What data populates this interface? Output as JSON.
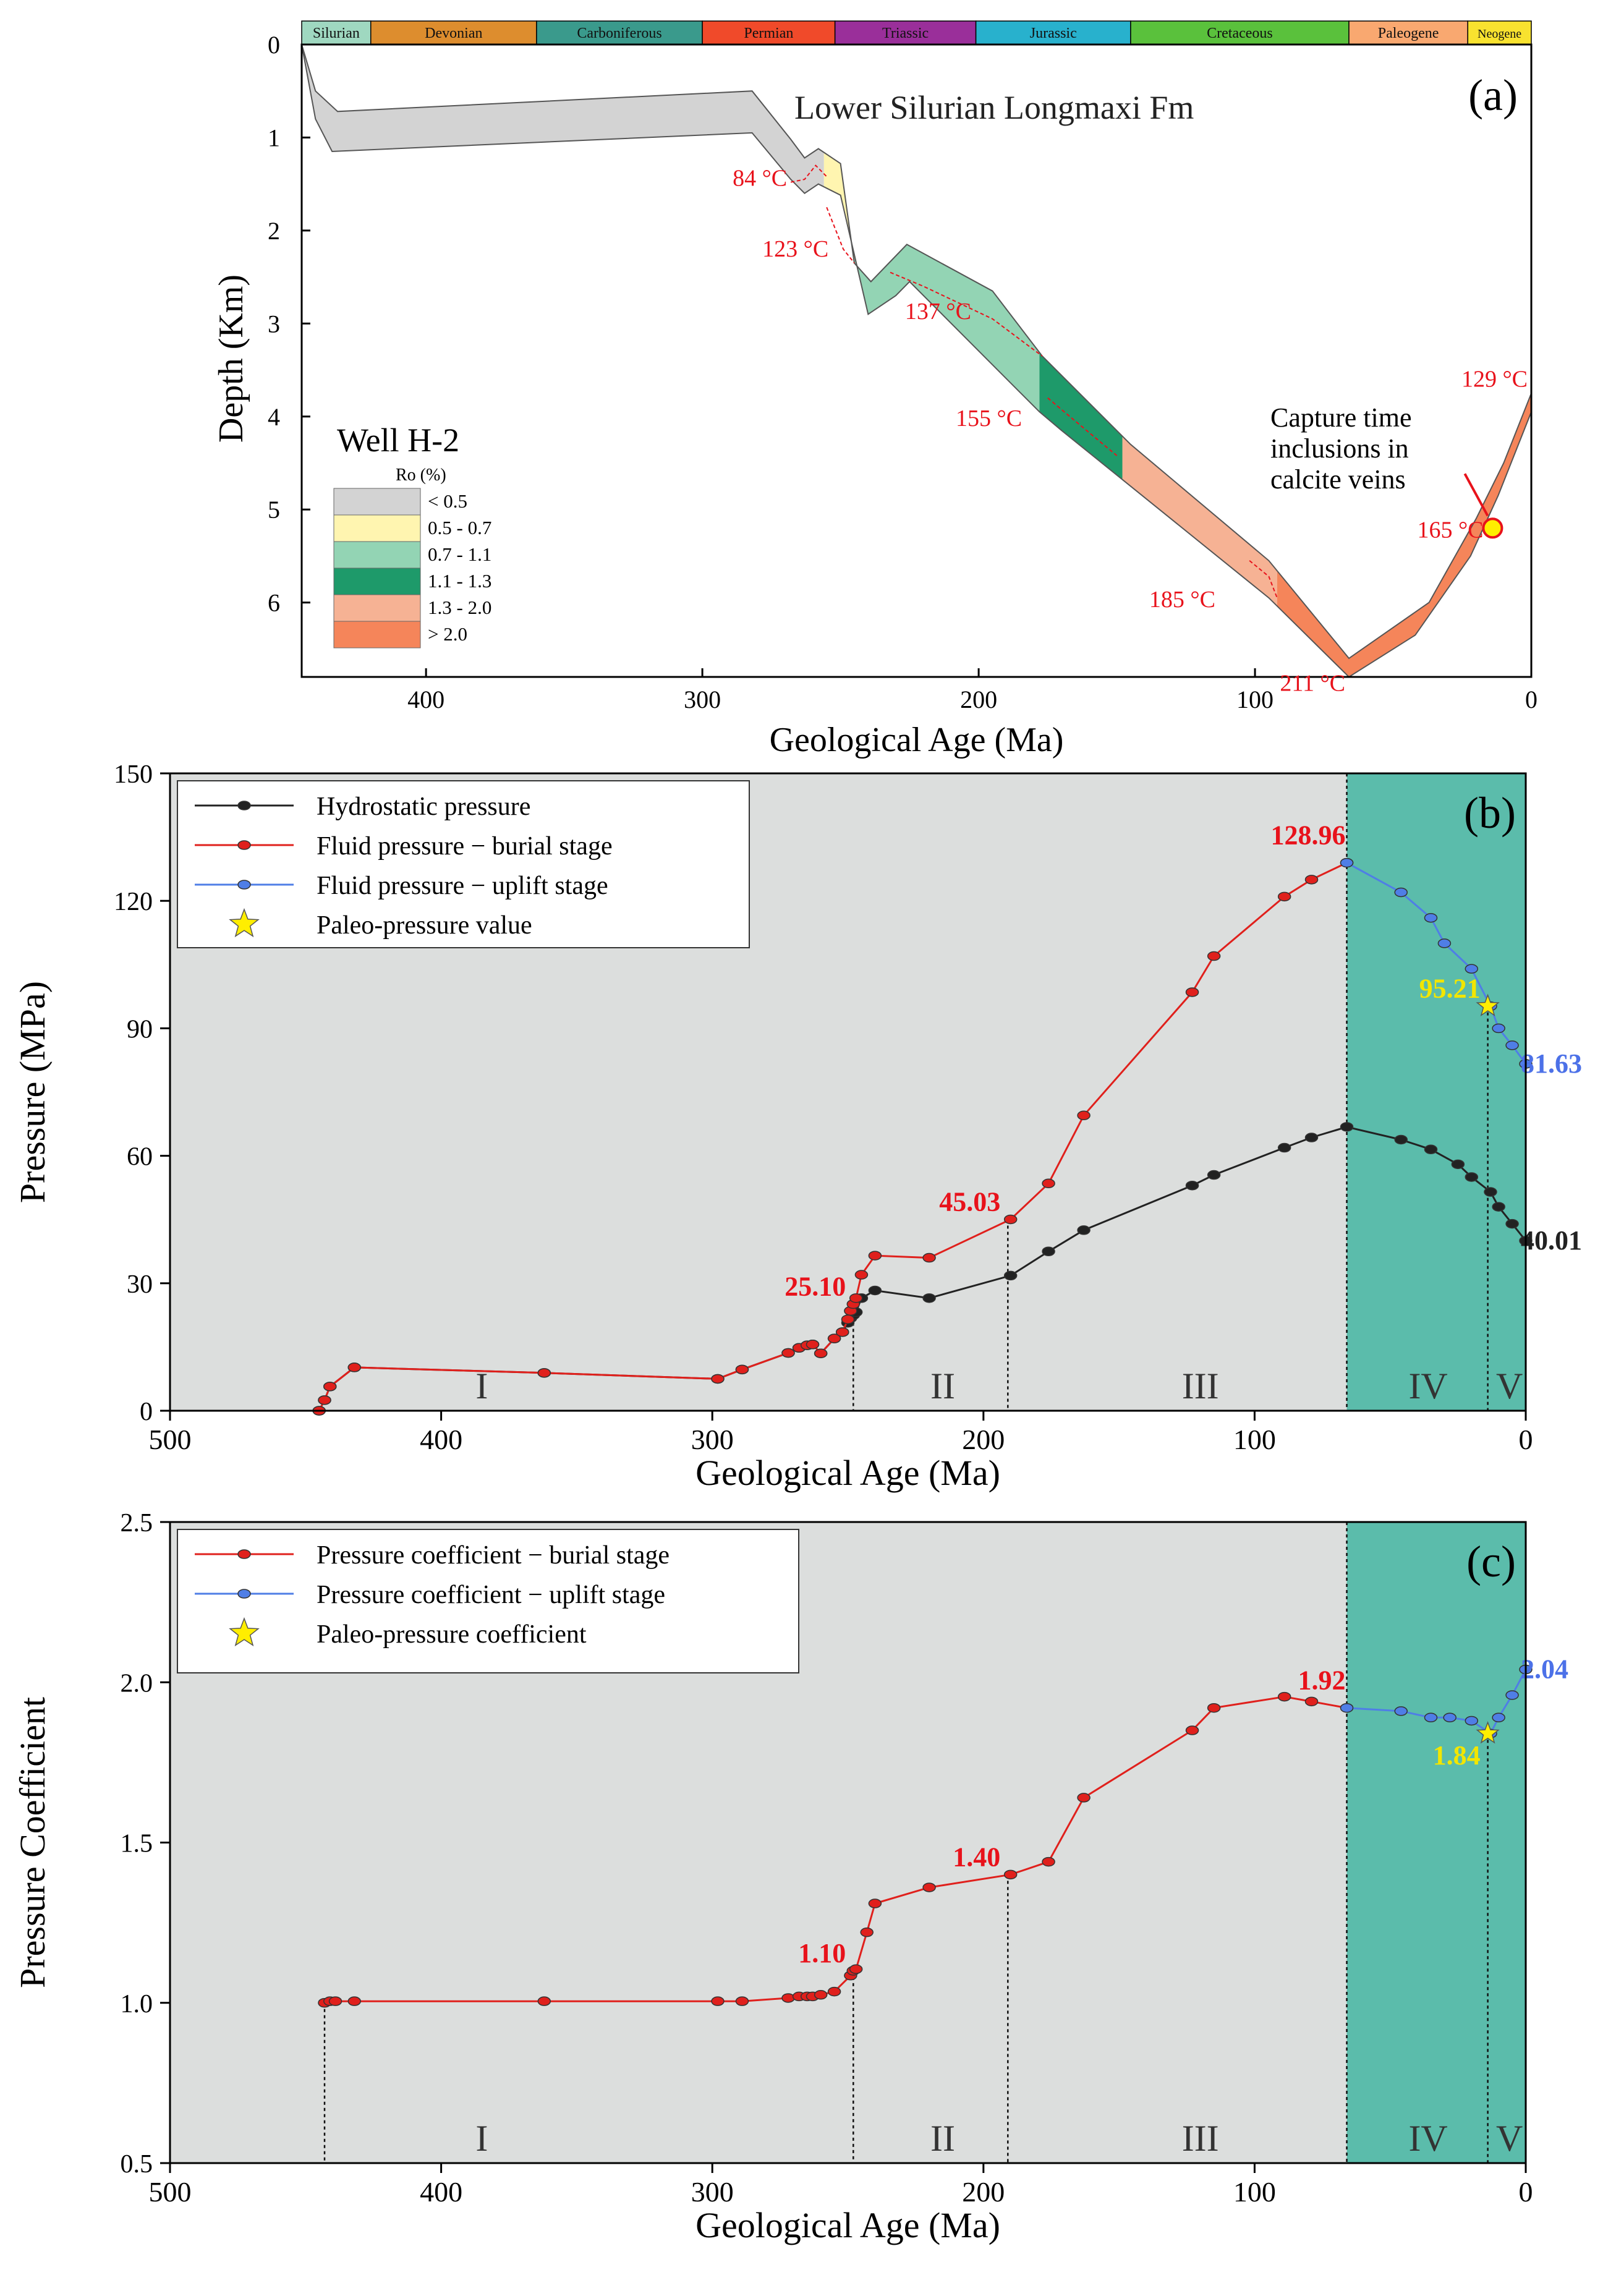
{
  "colors": {
    "ro_lt05": "#d3d3d3",
    "ro_05_07": "#fff5b0",
    "ro_07_11": "#93d4b4",
    "ro_11_13": "#1e9a6a",
    "ro_13_20": "#f6b294",
    "ro_gt20": "#f5855a",
    "panel_gray": "#dcdedd",
    "panel_teal": "#5bbcab",
    "red": "#e0201c",
    "blue": "#4f7ee6",
    "black": "#222222",
    "yellow": "#ffee00",
    "label_red": "#e8121b",
    "label_blue": "#4c71e8",
    "label_yellow": "#f2e600"
  },
  "chart_data": [
    {
      "id": "a",
      "type": "area",
      "panel_label": "(a)",
      "title": "Lower Silurian Longmaxi Fm",
      "xlabel": "Geological Age (Ma)",
      "ylabel": "Depth (Km)",
      "xlim": [
        445,
        0
      ],
      "ylim": [
        0,
        6.8
      ],
      "xticks": [
        400,
        300,
        200,
        100,
        0
      ],
      "yticks": [
        0,
        1,
        2,
        3,
        4,
        5,
        6
      ],
      "periods": [
        {
          "name": "Silurian",
          "start": 445,
          "end": 420,
          "color": "#9fd8c0"
        },
        {
          "name": "Devonian",
          "start": 420,
          "end": 360,
          "color": "#dd8d2e"
        },
        {
          "name": "Carboniferous",
          "start": 360,
          "end": 300,
          "color": "#3a9a8c"
        },
        {
          "name": "Permian",
          "start": 300,
          "end": 252,
          "color": "#f04a2a"
        },
        {
          "name": "Triassic",
          "start": 252,
          "end": 201,
          "color": "#9a2f9a"
        },
        {
          "name": "Jurassic",
          "start": 201,
          "end": 145,
          "color": "#28b1cd"
        },
        {
          "name": "Cretaceous",
          "start": 145,
          "end": 66,
          "color": "#5ac13c"
        },
        {
          "name": "Paleogene",
          "start": 66,
          "end": 23,
          "color": "#f9a870"
        },
        {
          "name": "Neogene",
          "start": 23,
          "end": 0,
          "color": "#f8e22f"
        }
      ],
      "well_label": "Well H-2",
      "legend_title": "Ro (%)",
      "legend": [
        {
          "label": "< 0.5",
          "color_key": "ro_lt05"
        },
        {
          "label": "0.5 - 0.7",
          "color_key": "ro_05_07"
        },
        {
          "label": "0.7 - 1.1",
          "color_key": "ro_07_11"
        },
        {
          "label": "1.1 - 1.3",
          "color_key": "ro_11_13"
        },
        {
          "label": "1.3 - 2.0",
          "color_key": "ro_13_20"
        },
        {
          "label": "> 2.0",
          "color_key": "ro_gt20"
        }
      ],
      "band_top": [
        [
          445,
          0.0
        ],
        [
          440,
          0.5
        ],
        [
          432,
          0.72
        ],
        [
          282,
          0.5
        ],
        [
          268,
          1.02
        ],
        [
          263,
          1.22
        ],
        [
          258,
          1.12
        ],
        [
          250,
          1.28
        ],
        [
          245,
          2.35
        ],
        [
          239,
          2.55
        ],
        [
          226,
          2.15
        ],
        [
          195,
          2.65
        ],
        [
          177,
          3.35
        ],
        [
          145,
          4.3
        ],
        [
          95,
          5.55
        ],
        [
          66,
          6.6
        ],
        [
          37,
          6.0
        ],
        [
          20,
          5.1
        ],
        [
          10,
          4.5
        ],
        [
          0,
          3.75
        ]
      ],
      "band_bottom": [
        [
          445,
          0.0
        ],
        [
          440,
          0.8
        ],
        [
          434,
          1.15
        ],
        [
          282,
          0.95
        ],
        [
          268,
          1.45
        ],
        [
          263,
          1.6
        ],
        [
          258,
          1.5
        ],
        [
          250,
          1.62
        ],
        [
          240,
          2.9
        ],
        [
          230,
          2.7
        ],
        [
          225,
          2.55
        ],
        [
          178,
          3.95
        ],
        [
          170,
          4.15
        ],
        [
          95,
          5.95
        ],
        [
          66,
          6.8
        ],
        [
          42,
          6.35
        ],
        [
          22,
          5.5
        ],
        [
          12,
          4.85
        ],
        [
          0,
          3.95
        ]
      ],
      "ro_boundaries": [
        {
          "from": "ro_lt05",
          "to": "ro_05_07",
          "path": [
            [
              268,
              1.48
            ],
            [
              263,
              1.45
            ],
            [
              259,
              1.3
            ],
            [
              255,
              1.42
            ]
          ]
        },
        {
          "from": "ro_05_07",
          "to": "ro_07_11",
          "path": [
            [
              255,
              1.75
            ],
            [
              249,
              2.2
            ],
            [
              245,
              2.35
            ]
          ]
        },
        {
          "from": "ro_07_11",
          "to": "ro_11_13",
          "path": [
            [
              232,
              2.45
            ],
            [
              220,
              2.6
            ],
            [
              195,
              2.95
            ],
            [
              177,
              3.35
            ]
          ]
        },
        {
          "from": "ro_11_13",
          "to": "ro_13_20",
          "path": [
            [
              175,
              3.8
            ],
            [
              165,
              4.05
            ],
            [
              150,
              4.42
            ]
          ]
        },
        {
          "from": "ro_13_20",
          "to": "ro_gt20",
          "path": [
            [
              102,
              5.55
            ],
            [
              95,
              5.72
            ],
            [
              92,
              5.95
            ]
          ]
        }
      ],
      "ro_cuts": [
        {
          "after": "ro_lt05",
          "age": 256
        },
        {
          "after": "ro_05_07",
          "age": 245
        },
        {
          "after": "ro_07_11",
          "age": 178
        },
        {
          "after": "ro_11_13",
          "age": 148
        },
        {
          "after": "ro_13_20",
          "age": 92
        }
      ],
      "temperature_labels": [
        {
          "text": "84 °C",
          "age": 268,
          "depth": 1.52,
          "anchor": "end"
        },
        {
          "text": "123 °C",
          "age": 253,
          "depth": 2.28,
          "anchor": "end"
        },
        {
          "text": "137 °C",
          "age": 228,
          "depth": 2.95,
          "anchor": "start"
        },
        {
          "text": "155 °C",
          "age": 183,
          "depth": 4.1,
          "anchor": "end"
        },
        {
          "text": "185 °C",
          "age": 113,
          "depth": 6.05,
          "anchor": "end"
        },
        {
          "text": "211 °C",
          "age": 66,
          "depth": 6.95,
          "anchor": "end"
        },
        {
          "text": "129 °C",
          "age": 0,
          "depth": 3.68,
          "anchor": "end"
        },
        {
          "text": "165 °C",
          "age": 16,
          "depth": 5.3,
          "anchor": "end"
        }
      ],
      "capture_point": {
        "age": 14,
        "depth": 5.2
      },
      "capture_annotation": [
        "Capture time",
        "inclusions in",
        "calcite veins"
      ]
    },
    {
      "id": "b",
      "type": "line",
      "panel_label": "(b)",
      "xlabel": "Geological Age (Ma)",
      "ylabel": "Pressure (MPa)",
      "xlim": [
        500,
        0
      ],
      "ylim": [
        0,
        150
      ],
      "xticks": [
        500,
        400,
        300,
        200,
        100,
        0
      ],
      "yticks": [
        0,
        30,
        60,
        90,
        120,
        150
      ],
      "stage_boundary": 66,
      "stages": [
        {
          "label": "I",
          "age": 385
        },
        {
          "label": "II",
          "age": 215
        },
        {
          "label": "III",
          "age": 120
        },
        {
          "label": "IV",
          "age": 36
        },
        {
          "label": "V",
          "age": 6
        }
      ],
      "vlines": [
        {
          "age": 248,
          "to": 25.1
        },
        {
          "age": 191,
          "to": 45.03
        },
        {
          "age": 66,
          "to": 150
        },
        {
          "age": 14,
          "to": 95.21
        }
      ],
      "series": [
        {
          "name": "Hydrostatic pressure",
          "color_key": "black",
          "x": [
            445,
            443,
            441,
            432,
            362,
            298,
            289,
            272,
            268,
            265,
            263,
            260,
            255,
            252,
            250,
            249,
            248,
            247,
            245,
            240,
            220,
            190,
            176,
            163,
            123,
            115,
            89,
            79,
            66,
            46,
            35,
            25,
            20,
            13,
            10,
            5,
            0
          ],
          "y": [
            0,
            2.5,
            5.7,
            10.2,
            8.9,
            7.5,
            9.7,
            13.6,
            14.8,
            15.4,
            15.6,
            13.5,
            17,
            18.5,
            20.7,
            21.8,
            22.5,
            23.2,
            26.5,
            28.3,
            26.5,
            31.8,
            37.5,
            42.5,
            53,
            55.5,
            61.9,
            64.3,
            66.8,
            63.8,
            61.5,
            58,
            55,
            51.5,
            48,
            44,
            40.01
          ]
        },
        {
          "name": "Fluid pressure − burial stage",
          "color_key": "red",
          "x": [
            445,
            443,
            441,
            432,
            362,
            298,
            289,
            272,
            268,
            265,
            263,
            260,
            255,
            252,
            250,
            249,
            248,
            247,
            245,
            240,
            220,
            190,
            176,
            163,
            123,
            115,
            89,
            79,
            66
          ],
          "y": [
            0,
            2.5,
            5.7,
            10.2,
            8.9,
            7.5,
            9.7,
            13.6,
            14.8,
            15.4,
            15.6,
            13.5,
            17,
            18.5,
            21.5,
            23.5,
            25.1,
            26.5,
            32,
            36.5,
            36,
            45.03,
            53.5,
            69.5,
            98.5,
            107,
            121,
            125,
            128.96
          ]
        },
        {
          "name": "Fluid pressure − uplift stage",
          "color_key": "blue",
          "x": [
            66,
            46,
            35,
            30,
            20,
            13,
            10,
            5,
            0
          ],
          "y": [
            128.96,
            122,
            116,
            110,
            104,
            95.21,
            90,
            86,
            81.63
          ]
        }
      ],
      "star": {
        "name": "Paleo-pressure value",
        "x": 14,
        "y": 95.21
      },
      "data_labels": [
        {
          "text": "128.96",
          "x": 66,
          "y": 128.96,
          "color_key": "label_red",
          "pos": "above-left"
        },
        {
          "text": "45.03",
          "x": 191,
          "y": 45.03,
          "color_key": "label_red",
          "pos": "left"
        },
        {
          "text": "25.10",
          "x": 248,
          "y": 25.1,
          "color_key": "label_red",
          "pos": "left"
        },
        {
          "text": "95.21",
          "x": 14,
          "y": 95.21,
          "color_key": "label_yellow",
          "pos": "left"
        },
        {
          "text": "81.63",
          "x": 0,
          "y": 81.63,
          "color_key": "label_blue",
          "pos": "right"
        },
        {
          "text": "40.01",
          "x": 0,
          "y": 40.01,
          "color_key": "black",
          "pos": "right"
        }
      ]
    },
    {
      "id": "c",
      "type": "line",
      "panel_label": "(c)",
      "xlabel": "Geological Age (Ma)",
      "ylabel": "Pressure Coefficient",
      "xlim": [
        500,
        0
      ],
      "ylim": [
        0.5,
        2.5
      ],
      "xticks": [
        500,
        400,
        300,
        200,
        100,
        0
      ],
      "yticks": [
        0.5,
        1.0,
        1.5,
        2.0,
        2.5
      ],
      "stage_boundary": 66,
      "stages": [
        {
          "label": "I",
          "age": 385
        },
        {
          "label": "II",
          "age": 215
        },
        {
          "label": "III",
          "age": 120
        },
        {
          "label": "IV",
          "age": 36
        },
        {
          "label": "V",
          "age": 6
        }
      ],
      "vlines": [
        {
          "age": 443,
          "to": 1.0
        },
        {
          "age": 248,
          "to": 1.1
        },
        {
          "age": 191,
          "to": 1.4
        },
        {
          "age": 66,
          "to": 2.5
        },
        {
          "age": 14,
          "to": 1.84
        }
      ],
      "series": [
        {
          "name": "Pressure coefficient − burial stage",
          "color_key": "red",
          "x": [
            443,
            441,
            439,
            432,
            362,
            298,
            289,
            272,
            268,
            265,
            263,
            260,
            255,
            249,
            248,
            247,
            243,
            240,
            220,
            190,
            176,
            163,
            123,
            115,
            89,
            79,
            66
          ],
          "y": [
            1.0,
            1.005,
            1.005,
            1.005,
            1.005,
            1.005,
            1.005,
            1.015,
            1.02,
            1.02,
            1.02,
            1.025,
            1.035,
            1.085,
            1.1,
            1.105,
            1.22,
            1.31,
            1.36,
            1.4,
            1.44,
            1.64,
            1.85,
            1.92,
            1.955,
            1.94,
            1.92
          ]
        },
        {
          "name": "Pressure coefficient − uplift stage",
          "color_key": "blue",
          "x": [
            66,
            46,
            35,
            28,
            20,
            13,
            10,
            5,
            0
          ],
          "y": [
            1.92,
            1.91,
            1.89,
            1.89,
            1.88,
            1.84,
            1.89,
            1.96,
            2.04
          ]
        }
      ],
      "star": {
        "name": "Paleo-pressure coefficient",
        "x": 14,
        "y": 1.84
      },
      "data_labels": [
        {
          "text": "1.92",
          "x": 66,
          "y": 1.92,
          "color_key": "label_red",
          "pos": "above-left"
        },
        {
          "text": "1.40",
          "x": 191,
          "y": 1.4,
          "color_key": "label_red",
          "pos": "left"
        },
        {
          "text": "1.10",
          "x": 248,
          "y": 1.1,
          "color_key": "label_red",
          "pos": "left"
        },
        {
          "text": "1.84",
          "x": 14,
          "y": 1.84,
          "color_key": "label_yellow",
          "pos": "below-left"
        },
        {
          "text": "2.04",
          "x": 0,
          "y": 2.04,
          "color_key": "label_blue",
          "pos": "right"
        }
      ]
    }
  ]
}
